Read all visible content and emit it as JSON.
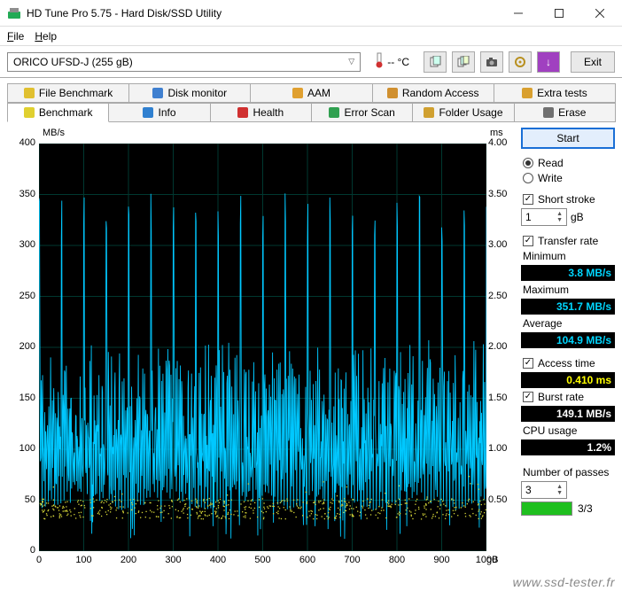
{
  "window": {
    "title": "HD Tune Pro 5.75 - Hard Disk/SSD Utility"
  },
  "menu": {
    "file": "File",
    "help": "Help"
  },
  "toolbar": {
    "drive": "ORICO   UFSD-J (255 gB)",
    "temp_label": "-- °C",
    "exit": "Exit"
  },
  "tabs_top": [
    {
      "label": "File Benchmark",
      "icon": "#e0c030"
    },
    {
      "label": "Disk monitor",
      "icon": "#4080d0"
    },
    {
      "label": "AAM",
      "icon": "#e0a030"
    },
    {
      "label": "Random Access",
      "icon": "#d09030"
    },
    {
      "label": "Extra tests",
      "icon": "#d9a030"
    }
  ],
  "tabs_bottom": [
    {
      "label": "Benchmark",
      "icon": "#e0d030",
      "active": true
    },
    {
      "label": "Info",
      "icon": "#3080d0"
    },
    {
      "label": "Health",
      "icon": "#d03030"
    },
    {
      "label": "Error Scan",
      "icon": "#30a050"
    },
    {
      "label": "Folder Usage",
      "icon": "#d0a030"
    },
    {
      "label": "Erase",
      "icon": "#707070"
    }
  ],
  "chart": {
    "left_unit": "MB/s",
    "right_unit": "ms",
    "x_unit": "gB",
    "y_ticks": [
      0,
      50,
      100,
      150,
      200,
      250,
      300,
      350,
      400
    ],
    "r_ticks": [
      "",
      "0.50",
      "1.00",
      "1.50",
      "2.00",
      "2.50",
      "3.00",
      "3.50",
      "4.00"
    ],
    "x_ticks": [
      0,
      100,
      200,
      300,
      400,
      500,
      600,
      700,
      800,
      900,
      1000
    ],
    "ymax": 400,
    "grid_color": "#003830",
    "background": "#000000",
    "line_color": "#00c8ff",
    "access_color": "#d4d438",
    "base_level": 40,
    "typical_peak": 180,
    "spike_peak": 345,
    "spike_period": 50,
    "access_band_low": 32,
    "access_band_high": 52
  },
  "side": {
    "start": "Start",
    "read": "Read",
    "write": "Write",
    "short_stroke": "Short stroke",
    "short_stroke_val": "1",
    "short_stroke_unit": "gB",
    "transfer_rate": "Transfer rate",
    "minimum": "Minimum",
    "minimum_val": "3.8 MB/s",
    "maximum": "Maximum",
    "maximum_val": "351.7 MB/s",
    "average": "Average",
    "average_val": "104.9 MB/s",
    "access_time": "Access time",
    "access_time_val": "0.410 ms",
    "burst_rate": "Burst rate",
    "burst_rate_val": "149.1 MB/s",
    "cpu_usage": "CPU usage",
    "cpu_usage_val": "1.2%",
    "passes": "Number of passes",
    "passes_val": "3",
    "passes_prog": "3/3",
    "prog_pct": 100
  },
  "watermark": "www.ssd-tester.fr"
}
